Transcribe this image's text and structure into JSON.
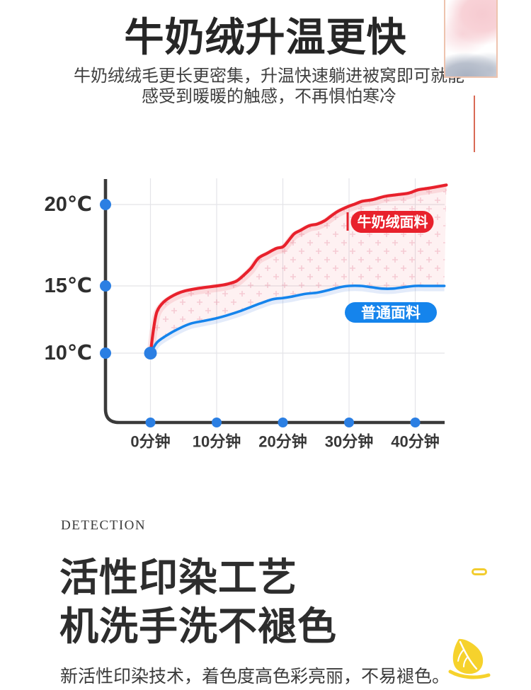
{
  "header": {
    "title": "牛奶绒升温更快",
    "subtitle_line1": "牛奶绒绒毛更长更密集，升温快速躺进被窝即可就能",
    "subtitle_line2": "感受到暖暖的触感，不再惧怕寒冷"
  },
  "chart_data": {
    "type": "line",
    "title": "",
    "x_axis": {
      "unit": "分钟",
      "ticks": [
        {
          "label": "0分钟",
          "minutes": 0
        },
        {
          "label": "10分钟",
          "minutes": 10
        },
        {
          "label": "20分钟",
          "minutes": 20
        },
        {
          "label": "30分钟",
          "minutes": 30
        },
        {
          "label": "40分钟",
          "minutes": 40
        }
      ]
    },
    "y_axis": {
      "unit": "℃",
      "ticks": [
        {
          "label": "20℃",
          "degrees": 20
        },
        {
          "label": "15℃",
          "degrees": 15
        },
        {
          "label": "10℃",
          "degrees": 10
        }
      ]
    },
    "grid": true,
    "legend_style": "inline-badges",
    "series": [
      {
        "name": "牛奶绒面料",
        "color": "#e8212c",
        "badge_text_color": "#ffffff",
        "points": [
          [
            0,
            10
          ],
          [
            0.5,
            11.9
          ],
          [
            1,
            13.1
          ],
          [
            2,
            13.8
          ],
          [
            3.5,
            14.3
          ],
          [
            5,
            14.6
          ],
          [
            7,
            14.8
          ],
          [
            10,
            15
          ],
          [
            11.5,
            15.1
          ],
          [
            13,
            15.3
          ],
          [
            14.2,
            15.7
          ],
          [
            15.2,
            16.1
          ],
          [
            16.3,
            16.7
          ],
          [
            17.6,
            17
          ],
          [
            19,
            17.3
          ],
          [
            20,
            17.4
          ],
          [
            20.7,
            17.7
          ],
          [
            21.7,
            18.2
          ],
          [
            22.6,
            18.4
          ],
          [
            24,
            18.7
          ],
          [
            25.2,
            18.8
          ],
          [
            26.3,
            19
          ],
          [
            27.3,
            19.3
          ],
          [
            28.4,
            19.6
          ],
          [
            30,
            19.9
          ],
          [
            30.7,
            20
          ],
          [
            32,
            20.2
          ],
          [
            33.6,
            20.3
          ],
          [
            35.4,
            20.5
          ],
          [
            37.2,
            20.6
          ],
          [
            39,
            20.7
          ],
          [
            40.4,
            20.9
          ],
          [
            42,
            21
          ],
          [
            43.4,
            21.1
          ],
          [
            44.7,
            21.2
          ]
        ]
      },
      {
        "name": "普通面料",
        "color": "#1584ec",
        "badge_text_color": "#ffffff",
        "points": [
          [
            0,
            10
          ],
          [
            1,
            10.8
          ],
          [
            2.4,
            11.3
          ],
          [
            4.2,
            11.8
          ],
          [
            6.1,
            12.2
          ],
          [
            8.1,
            12.4
          ],
          [
            10,
            12.6
          ],
          [
            11.5,
            12.8
          ],
          [
            13.4,
            13.1
          ],
          [
            15,
            13.4
          ],
          [
            16.6,
            13.7
          ],
          [
            18.4,
            14
          ],
          [
            20,
            14.1
          ],
          [
            21.3,
            14.2
          ],
          [
            23.3,
            14.4
          ],
          [
            25.2,
            14.5
          ],
          [
            27,
            14.7
          ],
          [
            28.6,
            14.9
          ],
          [
            30,
            15
          ],
          [
            31.8,
            15
          ],
          [
            33.4,
            14.9
          ],
          [
            35,
            14.8
          ],
          [
            36.6,
            14.8
          ],
          [
            38.2,
            14.9
          ],
          [
            40,
            15
          ],
          [
            41.4,
            15
          ],
          [
            43,
            15
          ],
          [
            44.4,
            15
          ]
        ]
      }
    ]
  },
  "detection": {
    "eyebrow": "DETECTION",
    "heading_line1": "活性印染工艺",
    "heading_line2": "机洗手洗不褪色",
    "body": "新活性印染技术，着色度高色彩亮丽，不易褪色。"
  },
  "colors": {
    "accent_line": "#d96a55",
    "frame_border": "#eec3ae",
    "watercolor_pink": "#f6cbd1",
    "watercolor_gray": "#a9b2c2",
    "leaf_yellow": "#f6d22c",
    "pill_outline_yellow": "#f2cc2e",
    "axis": "#3a3a3a",
    "grid": "#e4e4e8",
    "tick_dot": "#2b7fe3",
    "band_fill": "rgba(244,120,130,0.10)",
    "plus_pattern": "rgba(227,125,150,0.33)"
  }
}
